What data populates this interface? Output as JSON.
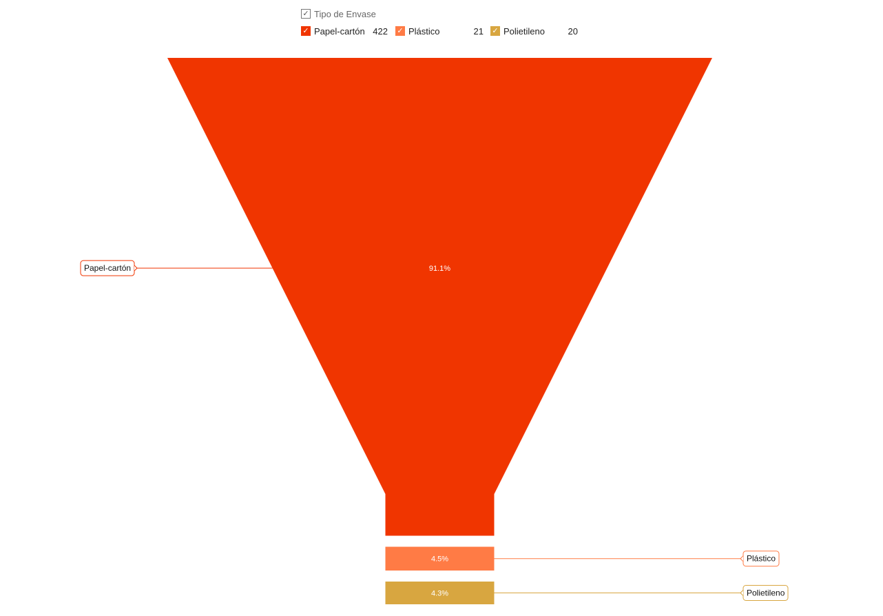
{
  "legend": {
    "title": "Tipo de Envase",
    "check_glyph": "✓"
  },
  "chart_data": {
    "type": "funnel",
    "categories": [
      "Papel-cartón",
      "Plástico",
      "Polietileno"
    ],
    "values": [
      422,
      21,
      20
    ],
    "percent_labels": [
      "91.1%",
      "4.5%",
      "4.3%"
    ],
    "colors": [
      "#f03500",
      "#ff7b45",
      "#d8a640"
    ],
    "legend_title": "Tipo de Envase",
    "legend_position": "top"
  }
}
